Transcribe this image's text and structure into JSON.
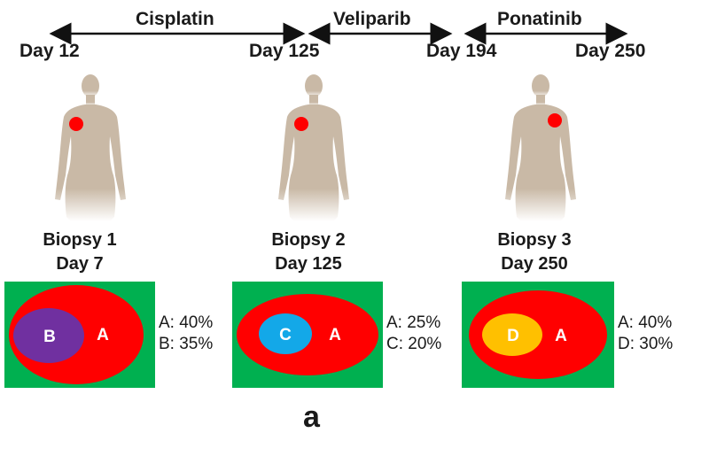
{
  "timeline": {
    "treatments": [
      {
        "label": "Cisplatin"
      },
      {
        "label": "Veliparib"
      },
      {
        "label": "Ponatinib"
      }
    ],
    "days": [
      {
        "label": "Day 12"
      },
      {
        "label": "Day 125"
      },
      {
        "label": "Day 194"
      },
      {
        "label": "Day 250"
      }
    ]
  },
  "biopsies": [
    {
      "title": "Biopsy 1",
      "day": "Day 7",
      "outer_clone": "A",
      "inner_clone": "B",
      "inner_color": "#7030a0",
      "stats": [
        "A: 40%",
        "B: 35%"
      ]
    },
    {
      "title": "Biopsy 2",
      "day": "Day 125",
      "outer_clone": "A",
      "inner_clone": "C",
      "inner_color": "#13a8e8",
      "stats": [
        "A: 25%",
        "C: 20%"
      ]
    },
    {
      "title": "Biopsy 3",
      "day": "Day 250",
      "outer_clone": "A",
      "inner_clone": "D",
      "inner_color": "#ffc000",
      "stats": [
        "A: 40%",
        "D: 30%"
      ]
    }
  ],
  "colors": {
    "background_box": "#00b050",
    "outer_clone": "#ff0000",
    "tumor_marker": "#ff0000",
    "body": "#c9b9a6"
  },
  "panel_label": "a"
}
